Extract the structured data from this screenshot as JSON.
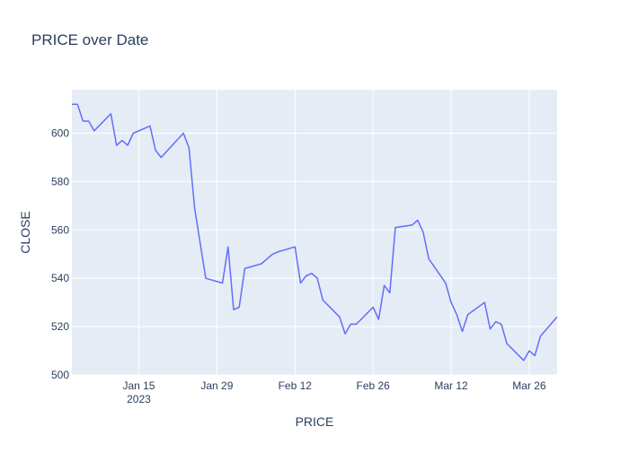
{
  "chart_data": {
    "type": "line",
    "title": "PRICE over Date",
    "xlabel": "PRICE",
    "ylabel": "CLOSE",
    "ylim": [
      500,
      618
    ],
    "xlim": [
      "2023-01-03",
      "2023-03-31"
    ],
    "grid": true,
    "legend": "none",
    "colors": {
      "line": "#636efa",
      "plot_bg": "#e5ecf6",
      "grid": "#ffffff",
      "text": "#2a3f5f"
    },
    "x_ticks": [
      {
        "date": "2023-01-15",
        "label": "Jan 15",
        "sublabel": "2023"
      },
      {
        "date": "2023-01-29",
        "label": "Jan 29",
        "sublabel": ""
      },
      {
        "date": "2023-02-12",
        "label": "Feb 12",
        "sublabel": ""
      },
      {
        "date": "2023-02-26",
        "label": "Feb 26",
        "sublabel": ""
      },
      {
        "date": "2023-03-12",
        "label": "Mar 12",
        "sublabel": ""
      },
      {
        "date": "2023-03-26",
        "label": "Mar 26",
        "sublabel": ""
      }
    ],
    "y_ticks": [
      500,
      520,
      540,
      560,
      580,
      600
    ],
    "series": [
      {
        "x": [
          "2023-01-03",
          "2023-01-04",
          "2023-01-05",
          "2023-01-06",
          "2023-01-07",
          "2023-01-10",
          "2023-01-11",
          "2023-01-12",
          "2023-01-13",
          "2023-01-14",
          "2023-01-17",
          "2023-01-18",
          "2023-01-19",
          "2023-01-23",
          "2023-01-24",
          "2023-01-25",
          "2023-01-27",
          "2023-01-30",
          "2023-01-31",
          "2023-02-01",
          "2023-02-02",
          "2023-02-03",
          "2023-02-06",
          "2023-02-07",
          "2023-02-08",
          "2023-02-09",
          "2023-02-12",
          "2023-02-13",
          "2023-02-14",
          "2023-02-15",
          "2023-02-16",
          "2023-02-17",
          "2023-02-20",
          "2023-02-21",
          "2023-02-22",
          "2023-02-23",
          "2023-02-26",
          "2023-02-27",
          "2023-02-28",
          "2023-03-01",
          "2023-03-02",
          "2023-03-05",
          "2023-03-06",
          "2023-03-07",
          "2023-03-08",
          "2023-03-11",
          "2023-03-12",
          "2023-03-13",
          "2023-03-14",
          "2023-03-15",
          "2023-03-18",
          "2023-03-19",
          "2023-03-20",
          "2023-03-21",
          "2023-03-22",
          "2023-03-25",
          "2023-03-26",
          "2023-03-27",
          "2023-03-28",
          "2023-03-31"
        ],
        "y": [
          612,
          612,
          605,
          605,
          601,
          608,
          595,
          597,
          595,
          600,
          603,
          593,
          590,
          600,
          594,
          569,
          540,
          538,
          553,
          527,
          528,
          544,
          546,
          548,
          550,
          551,
          553,
          538,
          541,
          542,
          540,
          531,
          524,
          517,
          521,
          521,
          528,
          523,
          537,
          534,
          561,
          562,
          564,
          559,
          548,
          538,
          530,
          525,
          518,
          525,
          530,
          519,
          522,
          521,
          513,
          506,
          510,
          508,
          516,
          524
        ]
      }
    ]
  }
}
